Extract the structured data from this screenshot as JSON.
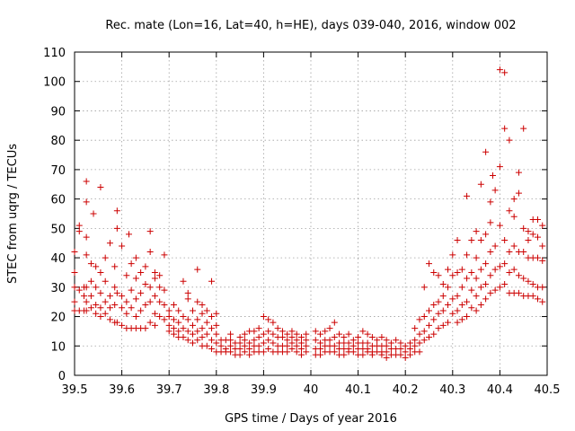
{
  "chart_data": {
    "type": "scatter",
    "title": "Rec. mate (Lon=16, Lat=40, h=HE), days 039-040, 2016, window 002",
    "xlabel": "GPS time / Days of year 2016",
    "ylabel": "STEC from uqrg / TECUs",
    "xlim": [
      39.5,
      40.5
    ],
    "ylim": [
      0,
      110
    ],
    "xticks": [
      "39.5",
      "39.6",
      "39.7",
      "39.8",
      "39.9",
      "40",
      "40.1",
      "40.2",
      "40.3",
      "40.4",
      "40.5"
    ],
    "yticks": [
      "0",
      "10",
      "20",
      "30",
      "40",
      "50",
      "60",
      "70",
      "80",
      "90",
      "100",
      "110"
    ],
    "grid": true,
    "marker": "+",
    "color": "#cc0000",
    "points": [
      [
        39.5,
        42
      ],
      [
        39.5,
        35
      ],
      [
        39.5,
        30
      ],
      [
        39.5,
        25
      ],
      [
        39.5,
        22
      ],
      [
        39.51,
        51
      ],
      [
        39.51,
        49
      ],
      [
        39.51,
        29
      ],
      [
        39.51,
        22
      ],
      [
        39.52,
        30
      ],
      [
        39.52,
        27
      ],
      [
        39.52,
        22
      ],
      [
        39.525,
        66
      ],
      [
        39.525,
        59
      ],
      [
        39.525,
        47
      ],
      [
        39.525,
        41
      ],
      [
        39.525,
        30
      ],
      [
        39.525,
        25
      ],
      [
        39.525,
        22
      ],
      [
        39.535,
        38
      ],
      [
        39.535,
        32
      ],
      [
        39.535,
        27
      ],
      [
        39.535,
        23
      ],
      [
        39.54,
        55
      ],
      [
        39.545,
        37
      ],
      [
        39.545,
        30
      ],
      [
        39.545,
        24
      ],
      [
        39.545,
        21
      ],
      [
        39.555,
        64
      ],
      [
        39.555,
        35
      ],
      [
        39.555,
        28
      ],
      [
        39.555,
        23
      ],
      [
        39.555,
        20
      ],
      [
        39.565,
        40
      ],
      [
        39.565,
        32
      ],
      [
        39.565,
        25
      ],
      [
        39.565,
        21
      ],
      [
        39.575,
        45
      ],
      [
        39.575,
        27
      ],
      [
        39.575,
        23
      ],
      [
        39.575,
        19
      ],
      [
        39.585,
        37
      ],
      [
        39.585,
        30
      ],
      [
        39.585,
        24
      ],
      [
        39.585,
        18
      ],
      [
        39.59,
        56
      ],
      [
        39.59,
        50
      ],
      [
        39.59,
        28
      ],
      [
        39.59,
        18
      ],
      [
        39.6,
        44
      ],
      [
        39.6,
        27
      ],
      [
        39.6,
        23
      ],
      [
        39.6,
        17
      ],
      [
        39.61,
        34
      ],
      [
        39.61,
        25
      ],
      [
        39.61,
        21
      ],
      [
        39.61,
        16
      ],
      [
        39.615,
        48
      ],
      [
        39.62,
        38
      ],
      [
        39.62,
        29
      ],
      [
        39.62,
        23
      ],
      [
        39.62,
        16
      ],
      [
        39.63,
        40
      ],
      [
        39.63,
        33
      ],
      [
        39.63,
        26
      ],
      [
        39.63,
        20
      ],
      [
        39.63,
        16
      ],
      [
        39.64,
        35
      ],
      [
        39.64,
        28
      ],
      [
        39.64,
        22
      ],
      [
        39.64,
        16
      ],
      [
        39.65,
        37
      ],
      [
        39.65,
        31
      ],
      [
        39.65,
        24
      ],
      [
        39.65,
        16
      ],
      [
        39.66,
        49
      ],
      [
        39.66,
        42
      ],
      [
        39.66,
        30
      ],
      [
        39.66,
        25
      ],
      [
        39.66,
        18
      ],
      [
        39.67,
        35
      ],
      [
        39.67,
        33
      ],
      [
        39.67,
        27
      ],
      [
        39.67,
        21
      ],
      [
        39.67,
        17
      ],
      [
        39.68,
        34
      ],
      [
        39.68,
        30
      ],
      [
        39.68,
        25
      ],
      [
        39.68,
        20
      ],
      [
        39.69,
        41
      ],
      [
        39.69,
        29
      ],
      [
        39.69,
        24
      ],
      [
        39.69,
        19
      ],
      [
        39.7,
        22
      ],
      [
        39.7,
        20
      ],
      [
        39.7,
        17
      ],
      [
        39.7,
        15
      ],
      [
        39.71,
        24
      ],
      [
        39.71,
        19
      ],
      [
        39.71,
        16
      ],
      [
        39.71,
        14
      ],
      [
        39.72,
        22
      ],
      [
        39.72,
        18
      ],
      [
        39.72,
        15
      ],
      [
        39.72,
        13
      ],
      [
        39.73,
        32
      ],
      [
        39.73,
        20
      ],
      [
        39.73,
        16
      ],
      [
        39.73,
        13
      ],
      [
        39.74,
        28
      ],
      [
        39.74,
        26
      ],
      [
        39.74,
        19
      ],
      [
        39.74,
        15
      ],
      [
        39.74,
        12
      ],
      [
        39.75,
        22
      ],
      [
        39.75,
        17
      ],
      [
        39.75,
        14
      ],
      [
        39.75,
        11
      ],
      [
        39.76,
        36
      ],
      [
        39.76,
        25
      ],
      [
        39.76,
        19
      ],
      [
        39.76,
        15
      ],
      [
        39.76,
        12
      ],
      [
        39.77,
        24
      ],
      [
        39.77,
        21
      ],
      [
        39.77,
        16
      ],
      [
        39.77,
        13
      ],
      [
        39.77,
        10
      ],
      [
        39.78,
        22
      ],
      [
        39.78,
        18
      ],
      [
        39.78,
        14
      ],
      [
        39.78,
        10
      ],
      [
        39.79,
        32
      ],
      [
        39.79,
        20
      ],
      [
        39.79,
        16
      ],
      [
        39.79,
        12
      ],
      [
        39.79,
        9
      ],
      [
        39.8,
        21
      ],
      [
        39.8,
        17
      ],
      [
        39.8,
        14
      ],
      [
        39.8,
        11
      ],
      [
        39.8,
        8
      ],
      [
        39.81,
        12
      ],
      [
        39.81,
        10
      ],
      [
        39.81,
        8
      ],
      [
        39.82,
        12
      ],
      [
        39.82,
        9
      ],
      [
        39.82,
        8
      ],
      [
        39.83,
        14
      ],
      [
        39.83,
        12
      ],
      [
        39.83,
        10
      ],
      [
        39.83,
        8
      ],
      [
        39.84,
        11
      ],
      [
        39.84,
        9
      ],
      [
        39.84,
        7
      ],
      [
        39.85,
        13
      ],
      [
        39.85,
        11
      ],
      [
        39.85,
        9
      ],
      [
        39.85,
        7
      ],
      [
        39.86,
        14
      ],
      [
        39.86,
        12
      ],
      [
        39.86,
        10
      ],
      [
        39.86,
        8
      ],
      [
        39.87,
        15
      ],
      [
        39.87,
        11
      ],
      [
        39.87,
        9
      ],
      [
        39.87,
        7
      ],
      [
        39.88,
        15
      ],
      [
        39.88,
        12
      ],
      [
        39.88,
        10
      ],
      [
        39.88,
        8
      ],
      [
        39.89,
        16
      ],
      [
        39.89,
        13
      ],
      [
        39.89,
        10
      ],
      [
        39.89,
        8
      ],
      [
        39.9,
        20
      ],
      [
        39.9,
        14
      ],
      [
        39.9,
        11
      ],
      [
        39.9,
        8
      ],
      [
        39.91,
        19
      ],
      [
        39.91,
        15
      ],
      [
        39.91,
        12
      ],
      [
        39.91,
        9
      ],
      [
        39.92,
        18
      ],
      [
        39.92,
        14
      ],
      [
        39.92,
        11
      ],
      [
        39.92,
        8
      ],
      [
        39.93,
        16
      ],
      [
        39.93,
        13
      ],
      [
        39.93,
        10
      ],
      [
        39.93,
        8
      ],
      [
        39.94,
        15
      ],
      [
        39.94,
        13
      ],
      [
        39.94,
        10
      ],
      [
        39.94,
        8
      ],
      [
        39.95,
        14
      ],
      [
        39.95,
        12
      ],
      [
        39.95,
        10
      ],
      [
        39.95,
        8
      ],
      [
        39.96,
        15
      ],
      [
        39.96,
        13
      ],
      [
        39.96,
        11
      ],
      [
        39.96,
        9
      ],
      [
        39.97,
        14
      ],
      [
        39.97,
        12
      ],
      [
        39.97,
        10
      ],
      [
        39.97,
        8
      ],
      [
        39.98,
        13
      ],
      [
        39.98,
        11
      ],
      [
        39.98,
        9
      ],
      [
        39.98,
        7
      ],
      [
        39.99,
        14
      ],
      [
        39.99,
        12
      ],
      [
        39.99,
        10
      ],
      [
        39.99,
        8
      ],
      [
        40.01,
        15
      ],
      [
        40.01,
        12
      ],
      [
        40.01,
        9
      ],
      [
        40.01,
        7
      ],
      [
        40.02,
        14
      ],
      [
        40.02,
        11
      ],
      [
        40.02,
        9
      ],
      [
        40.02,
        7
      ],
      [
        40.03,
        15
      ],
      [
        40.03,
        12
      ],
      [
        40.03,
        10
      ],
      [
        40.03,
        8
      ],
      [
        40.04,
        16
      ],
      [
        40.04,
        12
      ],
      [
        40.04,
        10
      ],
      [
        40.04,
        8
      ],
      [
        40.05,
        18
      ],
      [
        40.05,
        13
      ],
      [
        40.05,
        10
      ],
      [
        40.05,
        8
      ],
      [
        40.06,
        14
      ],
      [
        40.06,
        11
      ],
      [
        40.06,
        9
      ],
      [
        40.06,
        7
      ],
      [
        40.07,
        13
      ],
      [
        40.07,
        11
      ],
      [
        40.07,
        9
      ],
      [
        40.07,
        7
      ],
      [
        40.08,
        14
      ],
      [
        40.08,
        11
      ],
      [
        40.08,
        9
      ],
      [
        40.08,
        8
      ],
      [
        40.09,
        12
      ],
      [
        40.09,
        10
      ],
      [
        40.09,
        8
      ],
      [
        40.1,
        13
      ],
      [
        40.1,
        11
      ],
      [
        40.1,
        9
      ],
      [
        40.1,
        7
      ],
      [
        40.11,
        15
      ],
      [
        40.11,
        11
      ],
      [
        40.11,
        9
      ],
      [
        40.11,
        7
      ],
      [
        40.12,
        14
      ],
      [
        40.12,
        11
      ],
      [
        40.12,
        9
      ],
      [
        40.12,
        8
      ],
      [
        40.13,
        13
      ],
      [
        40.13,
        10
      ],
      [
        40.13,
        8
      ],
      [
        40.13,
        7
      ],
      [
        40.14,
        12
      ],
      [
        40.14,
        10
      ],
      [
        40.14,
        8
      ],
      [
        40.15,
        13
      ],
      [
        40.15,
        10
      ],
      [
        40.15,
        8
      ],
      [
        40.15,
        7
      ],
      [
        40.16,
        12
      ],
      [
        40.16,
        10
      ],
      [
        40.16,
        8
      ],
      [
        40.16,
        6
      ],
      [
        40.17,
        11
      ],
      [
        40.17,
        9
      ],
      [
        40.17,
        7
      ],
      [
        40.18,
        12
      ],
      [
        40.18,
        9
      ],
      [
        40.18,
        7
      ],
      [
        40.19,
        11
      ],
      [
        40.19,
        9
      ],
      [
        40.19,
        7
      ],
      [
        40.2,
        10
      ],
      [
        40.2,
        8
      ],
      [
        40.2,
        6
      ],
      [
        40.21,
        11
      ],
      [
        40.21,
        9
      ],
      [
        40.21,
        7
      ],
      [
        40.22,
        16
      ],
      [
        40.22,
        12
      ],
      [
        40.22,
        10
      ],
      [
        40.22,
        8
      ],
      [
        40.23,
        19
      ],
      [
        40.23,
        14
      ],
      [
        40.23,
        11
      ],
      [
        40.23,
        8
      ],
      [
        40.24,
        30
      ],
      [
        40.24,
        20
      ],
      [
        40.24,
        15
      ],
      [
        40.24,
        12
      ],
      [
        40.25,
        38
      ],
      [
        40.25,
        22
      ],
      [
        40.25,
        17
      ],
      [
        40.25,
        13
      ],
      [
        40.26,
        35
      ],
      [
        40.26,
        24
      ],
      [
        40.26,
        19
      ],
      [
        40.26,
        14
      ],
      [
        40.27,
        34
      ],
      [
        40.27,
        25
      ],
      [
        40.27,
        21
      ],
      [
        40.27,
        16
      ],
      [
        40.28,
        31
      ],
      [
        40.28,
        27
      ],
      [
        40.28,
        22
      ],
      [
        40.28,
        17
      ],
      [
        40.29,
        36
      ],
      [
        40.29,
        30
      ],
      [
        40.29,
        24
      ],
      [
        40.29,
        18
      ],
      [
        40.3,
        41
      ],
      [
        40.3,
        34
      ],
      [
        40.3,
        26
      ],
      [
        40.3,
        21
      ],
      [
        40.31,
        46
      ],
      [
        40.31,
        35
      ],
      [
        40.31,
        27
      ],
      [
        40.31,
        22
      ],
      [
        40.31,
        18
      ],
      [
        40.32,
        36
      ],
      [
        40.32,
        30
      ],
      [
        40.32,
        24
      ],
      [
        40.32,
        19
      ],
      [
        40.33,
        61
      ],
      [
        40.33,
        41
      ],
      [
        40.33,
        33
      ],
      [
        40.33,
        25
      ],
      [
        40.33,
        20
      ],
      [
        40.34,
        46
      ],
      [
        40.34,
        35
      ],
      [
        40.34,
        29
      ],
      [
        40.34,
        23
      ],
      [
        40.35,
        49
      ],
      [
        40.35,
        40
      ],
      [
        40.35,
        33
      ],
      [
        40.35,
        27
      ],
      [
        40.35,
        22
      ],
      [
        40.36,
        65
      ],
      [
        40.36,
        46
      ],
      [
        40.36,
        36
      ],
      [
        40.36,
        30
      ],
      [
        40.36,
        24
      ],
      [
        40.37,
        76
      ],
      [
        40.37,
        48
      ],
      [
        40.37,
        38
      ],
      [
        40.37,
        31
      ],
      [
        40.37,
        26
      ],
      [
        40.38,
        59
      ],
      [
        40.38,
        52
      ],
      [
        40.38,
        42
      ],
      [
        40.38,
        34
      ],
      [
        40.38,
        28
      ],
      [
        40.385,
        68
      ],
      [
        40.39,
        63
      ],
      [
        40.39,
        44
      ],
      [
        40.39,
        36
      ],
      [
        40.39,
        29
      ],
      [
        40.4,
        104
      ],
      [
        40.4,
        71
      ],
      [
        40.4,
        51
      ],
      [
        40.4,
        37
      ],
      [
        40.4,
        30
      ],
      [
        40.41,
        103
      ],
      [
        40.41,
        84
      ],
      [
        40.41,
        46
      ],
      [
        40.41,
        38
      ],
      [
        40.41,
        31
      ],
      [
        40.42,
        80
      ],
      [
        40.42,
        56
      ],
      [
        40.42,
        42
      ],
      [
        40.42,
        35
      ],
      [
        40.42,
        28
      ],
      [
        40.43,
        60
      ],
      [
        40.43,
        54
      ],
      [
        40.43,
        44
      ],
      [
        40.43,
        36
      ],
      [
        40.43,
        28
      ],
      [
        40.44,
        69
      ],
      [
        40.44,
        62
      ],
      [
        40.44,
        42
      ],
      [
        40.44,
        34
      ],
      [
        40.44,
        28
      ],
      [
        40.45,
        84
      ],
      [
        40.45,
        50
      ],
      [
        40.45,
        42
      ],
      [
        40.45,
        33
      ],
      [
        40.45,
        27
      ],
      [
        40.46,
        49
      ],
      [
        40.46,
        46
      ],
      [
        40.46,
        40
      ],
      [
        40.46,
        32
      ],
      [
        40.46,
        27
      ],
      [
        40.47,
        53
      ],
      [
        40.47,
        48
      ],
      [
        40.47,
        40
      ],
      [
        40.47,
        31
      ],
      [
        40.47,
        27
      ],
      [
        40.48,
        53
      ],
      [
        40.48,
        47
      ],
      [
        40.48,
        40
      ],
      [
        40.48,
        30
      ],
      [
        40.48,
        26
      ],
      [
        40.49,
        51
      ],
      [
        40.49,
        44
      ],
      [
        40.49,
        39
      ],
      [
        40.49,
        30
      ],
      [
        40.49,
        25
      ]
    ]
  }
}
